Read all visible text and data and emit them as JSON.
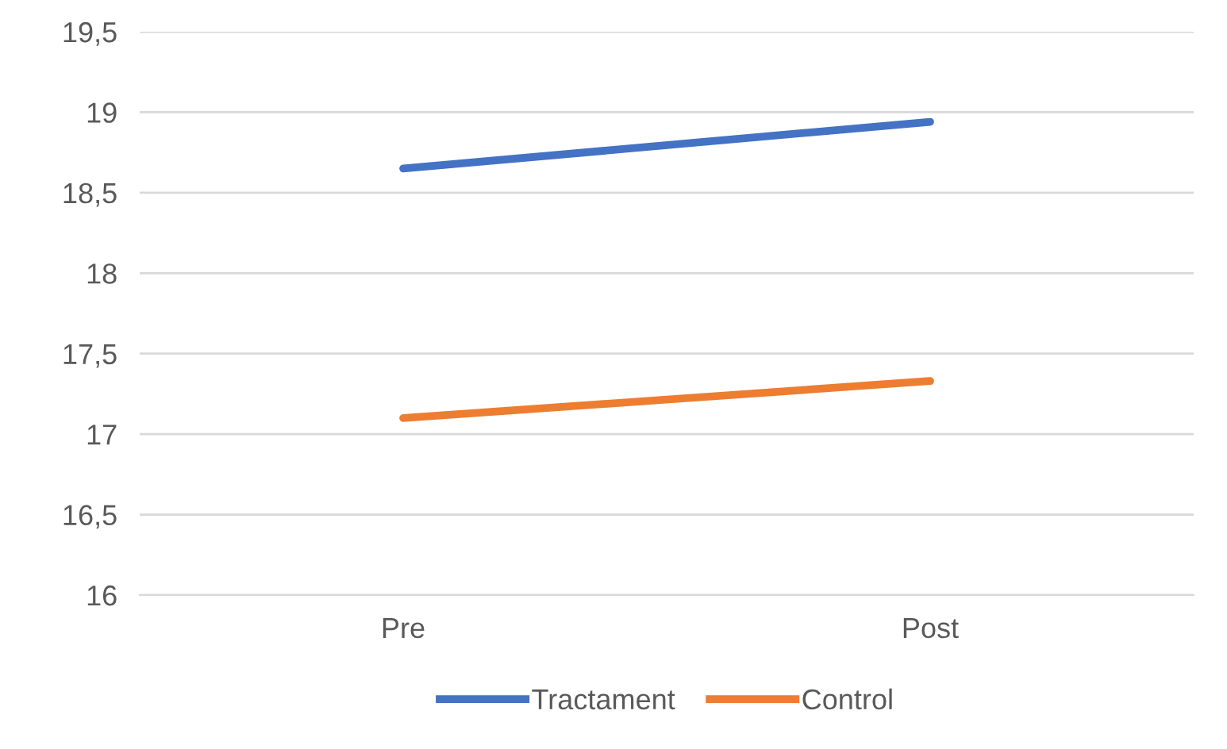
{
  "chart_data": {
    "type": "line",
    "categories": [
      "Pre",
      "Post"
    ],
    "series": [
      {
        "name": "Tractament",
        "color": "#4472c4",
        "values": [
          18.65,
          18.94
        ]
      },
      {
        "name": "Control",
        "color": "#ed7d31",
        "values": [
          17.1,
          17.33
        ]
      }
    ],
    "ylim": [
      16,
      19.5
    ],
    "yticks": [
      16,
      {
        "value": 16.5,
        "label": "16,5"
      },
      17,
      {
        "value": 17.5,
        "label": "17,5"
      },
      18,
      {
        "value": 18.5,
        "label": "18,5"
      },
      19,
      {
        "value": 19.5,
        "label": "19,5"
      }
    ],
    "grid": "y",
    "legend": "bottom",
    "marker": "none",
    "line_style": "solid"
  }
}
